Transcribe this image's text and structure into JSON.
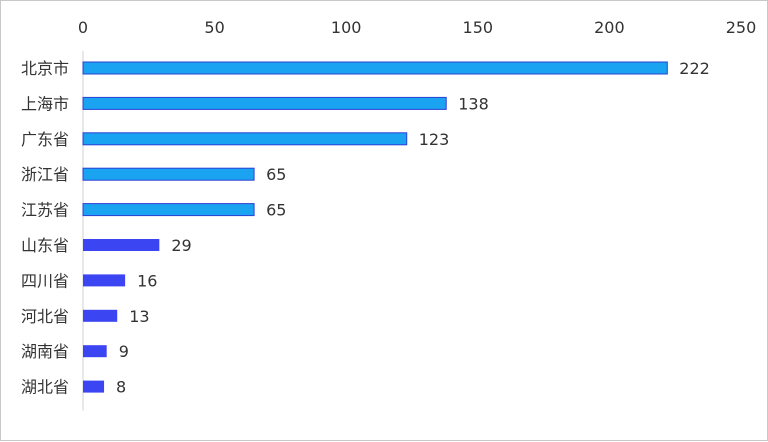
{
  "chart_data": {
    "type": "bar",
    "orientation": "horizontal",
    "categories": [
      "北京市",
      "上海市",
      "广东省",
      "浙江省",
      "江苏省",
      "山东省",
      "四川省",
      "河北省",
      "湖南省",
      "湖北省"
    ],
    "values": [
      222,
      138,
      123,
      65,
      65,
      29,
      16,
      13,
      9,
      8
    ],
    "value_labels": [
      "222",
      "138",
      "123",
      "65",
      "65",
      "29",
      "16",
      "13",
      "9",
      "8"
    ],
    "x_ticks": [
      "0",
      "50",
      "100",
      "150",
      "200",
      "250"
    ],
    "xlim": [
      0,
      250
    ],
    "x_axis_position": "top",
    "grid": false,
    "colors": {
      "top_group_fill": "#1aa3f0",
      "top_group_stroke": "#2b3fd6",
      "rest_fill": "#3b45f2",
      "axis_line": "#d0d0d0"
    },
    "highlight_count": 5
  }
}
